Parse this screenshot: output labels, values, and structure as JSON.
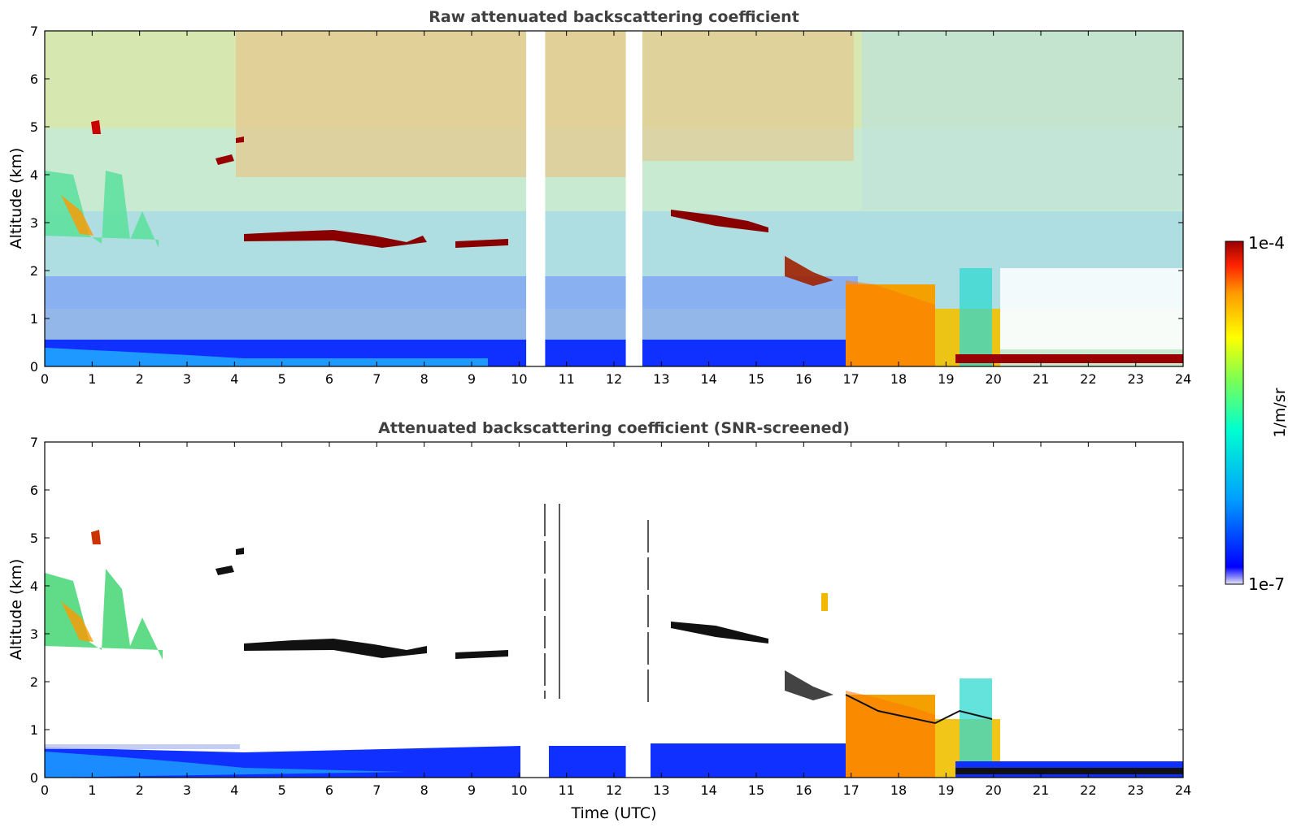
{
  "chart_data": [
    {
      "type": "heatmap",
      "title": "Raw attenuated backscattering coefficient",
      "xlabel": "",
      "ylabel": "Altitude (km)",
      "xlim": [
        0,
        24
      ],
      "ylim": [
        0,
        7
      ],
      "xticks": [
        "0",
        "1",
        "2",
        "3",
        "4",
        "5",
        "6",
        "7",
        "8",
        "9",
        "10",
        "11",
        "12",
        "13",
        "14",
        "15",
        "16",
        "17",
        "18",
        "19",
        "20",
        "21",
        "22",
        "23",
        "24"
      ],
      "yticks": [
        "0",
        "1",
        "2",
        "3",
        "4",
        "5",
        "6",
        "7"
      ],
      "data_gaps_utc": [
        [
          10.15,
          10.55
        ],
        [
          12.25,
          12.6
        ]
      ],
      "features": [
        {
          "kind": "surface-layer",
          "x": [
            0,
            16.8
          ],
          "y": [
            0,
            0.5
          ],
          "level": "low"
        },
        {
          "kind": "thick-cloud",
          "x": [
            16.8,
            20.2
          ],
          "y": [
            0,
            1.7
          ],
          "level": "high"
        },
        {
          "kind": "surface-layer",
          "x": [
            20.2,
            24
          ],
          "y": [
            0.05,
            0.25
          ],
          "level": "max"
        },
        {
          "kind": "cloud-layer",
          "x": [
            4.2,
            7.0
          ],
          "y": [
            2.55,
            2.75
          ],
          "level": "max"
        },
        {
          "kind": "cloud-layer",
          "x": [
            8.7,
            9.8
          ],
          "y": [
            2.45,
            2.6
          ],
          "level": "max"
        },
        {
          "kind": "cloud-layer",
          "x": [
            13.5,
            15.2
          ],
          "y": [
            2.8,
            3.1
          ],
          "level": "max"
        },
        {
          "kind": "aerosol-plume",
          "x": [
            0,
            2.4
          ],
          "y": [
            2.4,
            4.0
          ],
          "level": "mid"
        }
      ]
    },
    {
      "type": "heatmap",
      "title": "Attenuated backscattering coefficient (SNR-screened)",
      "xlabel": "Time (UTC)",
      "ylabel": "Altitude (km)",
      "xlim": [
        0,
        24
      ],
      "ylim": [
        0,
        7
      ],
      "xticks": [
        "0",
        "1",
        "2",
        "3",
        "4",
        "5",
        "6",
        "7",
        "8",
        "9",
        "10",
        "11",
        "12",
        "13",
        "14",
        "15",
        "16",
        "17",
        "18",
        "19",
        "20",
        "21",
        "22",
        "23",
        "24"
      ],
      "yticks": [
        "0",
        "1",
        "2",
        "3",
        "4",
        "5",
        "6",
        "7"
      ],
      "data_gaps_utc": [
        [
          10.15,
          10.55
        ],
        [
          12.25,
          12.6
        ]
      ]
    }
  ],
  "colorbar": {
    "label": "1/m/sr",
    "max_label": "1e-4",
    "min_label": "1e-7",
    "colormap": [
      "#e6e6f5",
      "#0000ff",
      "#00a0ff",
      "#00ffd0",
      "#7fff50",
      "#ffff00",
      "#ff9900",
      "#ff2200",
      "#990000"
    ]
  }
}
